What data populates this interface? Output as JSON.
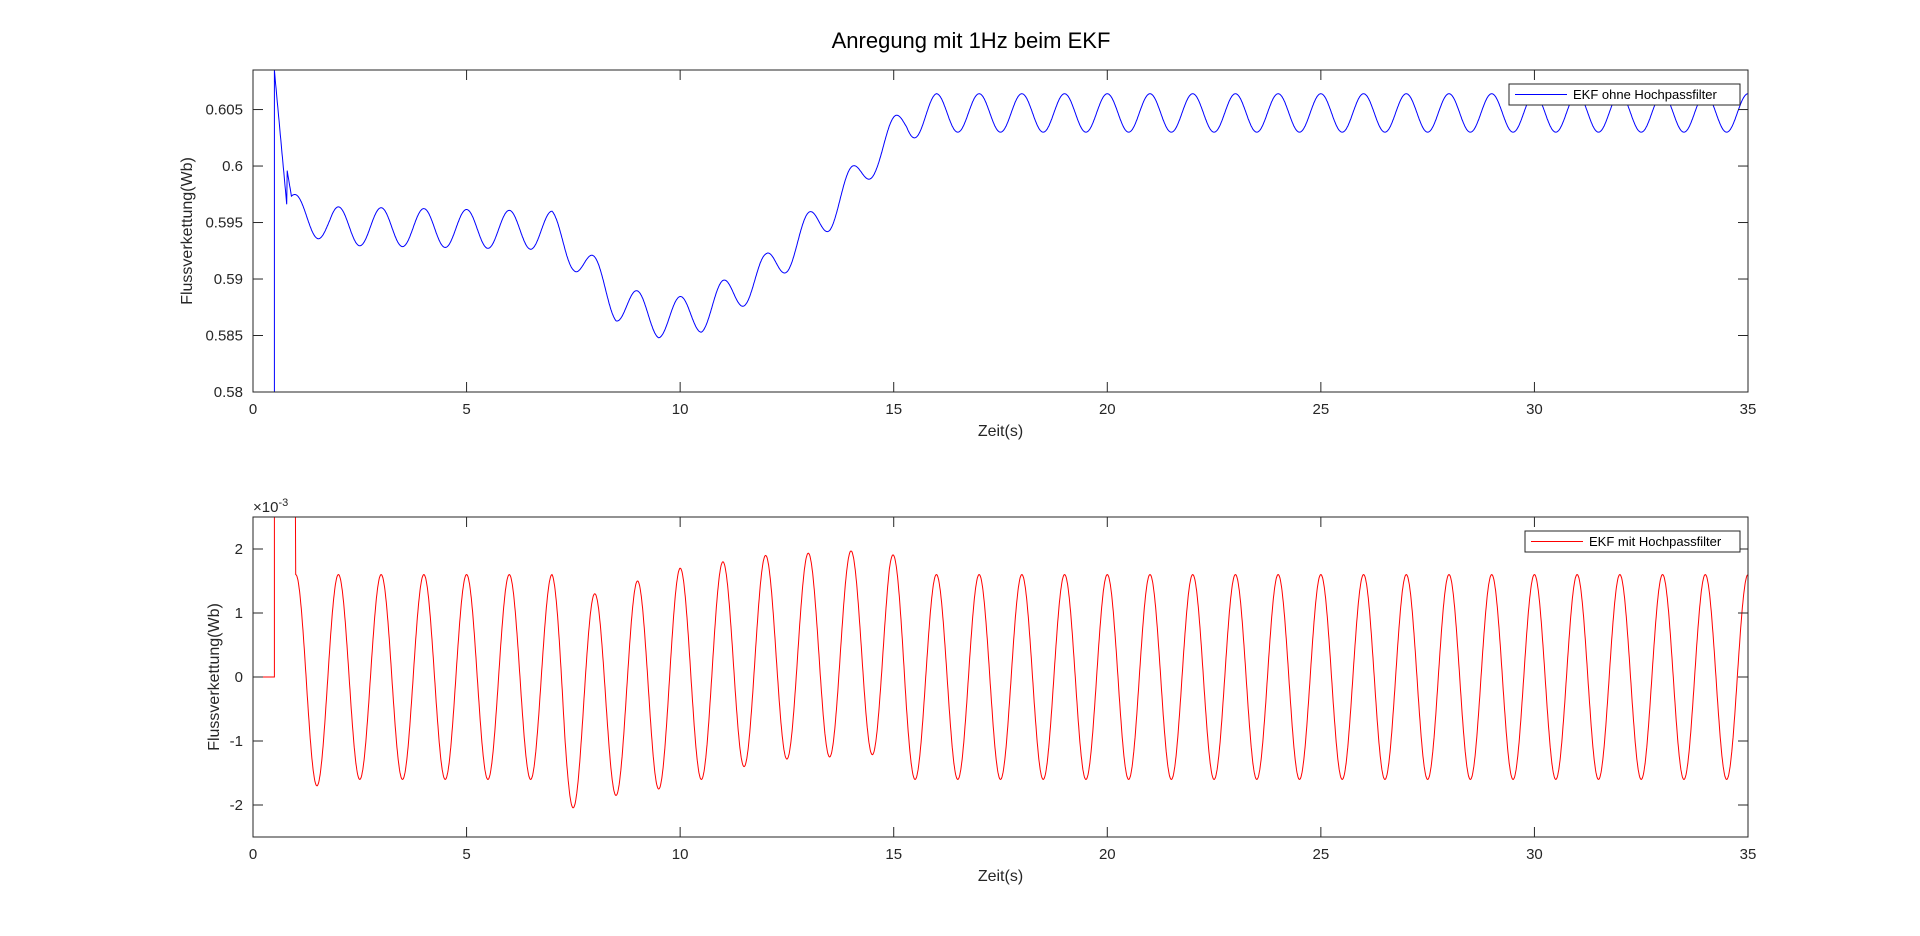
{
  "figure": {
    "title": "Anregung mit 1Hz beim EKF"
  },
  "chart_data": [
    {
      "type": "line",
      "xlabel": "Zeit(s)",
      "ylabel": "Flussverkettung(Wb)",
      "xlim": [
        0,
        35
      ],
      "ylim": [
        0.58,
        0.6085
      ],
      "xticks": [
        0,
        5,
        10,
        15,
        20,
        25,
        30,
        35
      ],
      "xtick_labels": [
        "0",
        "5",
        "10",
        "15",
        "20",
        "25",
        "30",
        "35"
      ],
      "yticks": [
        0.58,
        0.585,
        0.59,
        0.595,
        0.6,
        0.605
      ],
      "ytick_labels": [
        "0.58",
        "0.585",
        "0.59",
        "0.595",
        "0.6",
        "0.605"
      ],
      "exponent_label": "",
      "grid": false,
      "legend_position": "top-right",
      "series": [
        {
          "name": "EKF ohne Hochpassfilter",
          "color": "#0000ff",
          "frequency_hz": 1.0,
          "start_time": 0.5,
          "envelope": [
            {
              "t": 0.5,
              "mean": 0.6085,
              "amp": 0.0
            },
            {
              "t": 0.9,
              "mean": 0.5962,
              "amp": 0.0014
            },
            {
              "t": 1.8,
              "mean": 0.5947,
              "amp": 0.0017
            },
            {
              "t": 7.0,
              "mean": 0.5943,
              "amp": 0.0017
            },
            {
              "t": 7.5,
              "mean": 0.5925,
              "amp": 0.0017
            },
            {
              "t": 8.5,
              "mean": 0.588,
              "amp": 0.0017
            },
            {
              "t": 9.5,
              "mean": 0.5865,
              "amp": 0.0017
            },
            {
              "t": 10.5,
              "mean": 0.587,
              "amp": 0.0017
            },
            {
              "t": 12.0,
              "mean": 0.5905,
              "amp": 0.0017
            },
            {
              "t": 13.5,
              "mean": 0.596,
              "amp": 0.0017
            },
            {
              "t": 14.6,
              "mean": 0.601,
              "amp": 0.0015
            },
            {
              "t": 15.3,
              "mean": 0.604,
              "amp": 0.0017
            },
            {
              "t": 16.0,
              "mean": 0.6047,
              "amp": 0.0017
            },
            {
              "t": 35.0,
              "mean": 0.6047,
              "amp": 0.0017
            }
          ]
        }
      ]
    },
    {
      "type": "line",
      "xlabel": "Zeit(s)",
      "ylabel": "Flussverkettung(Wb)",
      "xlim": [
        0,
        35
      ],
      "ylim": [
        -0.0025,
        0.0025
      ],
      "xticks": [
        0,
        5,
        10,
        15,
        20,
        25,
        30,
        35
      ],
      "xtick_labels": [
        "0",
        "5",
        "10",
        "15",
        "20",
        "25",
        "30",
        "35"
      ],
      "yticks": [
        -0.002,
        -0.001,
        0,
        0.001,
        0.002
      ],
      "ytick_labels": [
        "-2",
        "-1",
        "0",
        "1",
        "2"
      ],
      "exponent_label": "×10",
      "exponent_power": "-3",
      "grid": false,
      "legend_position": "top-right",
      "series": [
        {
          "name": "EKF mit Hochpassfilter",
          "color": "#ff0000",
          "frequency_hz": 1.0,
          "start_time": 0.5,
          "envelope": [
            {
              "t": 0.5,
              "mean": 0.0,
              "amp": 0.0
            },
            {
              "t": 1.0,
              "mean": -0.0001,
              "amp": 0.0017
            },
            {
              "t": 2.0,
              "mean": 0.0,
              "amp": 0.0016
            },
            {
              "t": 7.0,
              "mean": 0.0,
              "amp": 0.0016
            },
            {
              "t": 7.3,
              "mean": -0.0004,
              "amp": 0.0017
            },
            {
              "t": 8.0,
              "mean": -0.0003,
              "amp": 0.0016
            },
            {
              "t": 10.0,
              "mean": 0.0,
              "amp": 0.0017
            },
            {
              "t": 12.0,
              "mean": 0.0003,
              "amp": 0.0016
            },
            {
              "t": 14.9,
              "mean": 0.0004,
              "amp": 0.0016
            },
            {
              "t": 15.3,
              "mean": 0.0,
              "amp": 0.0016
            },
            {
              "t": 35.0,
              "mean": 0.0,
              "amp": 0.0016
            }
          ]
        }
      ]
    }
  ]
}
